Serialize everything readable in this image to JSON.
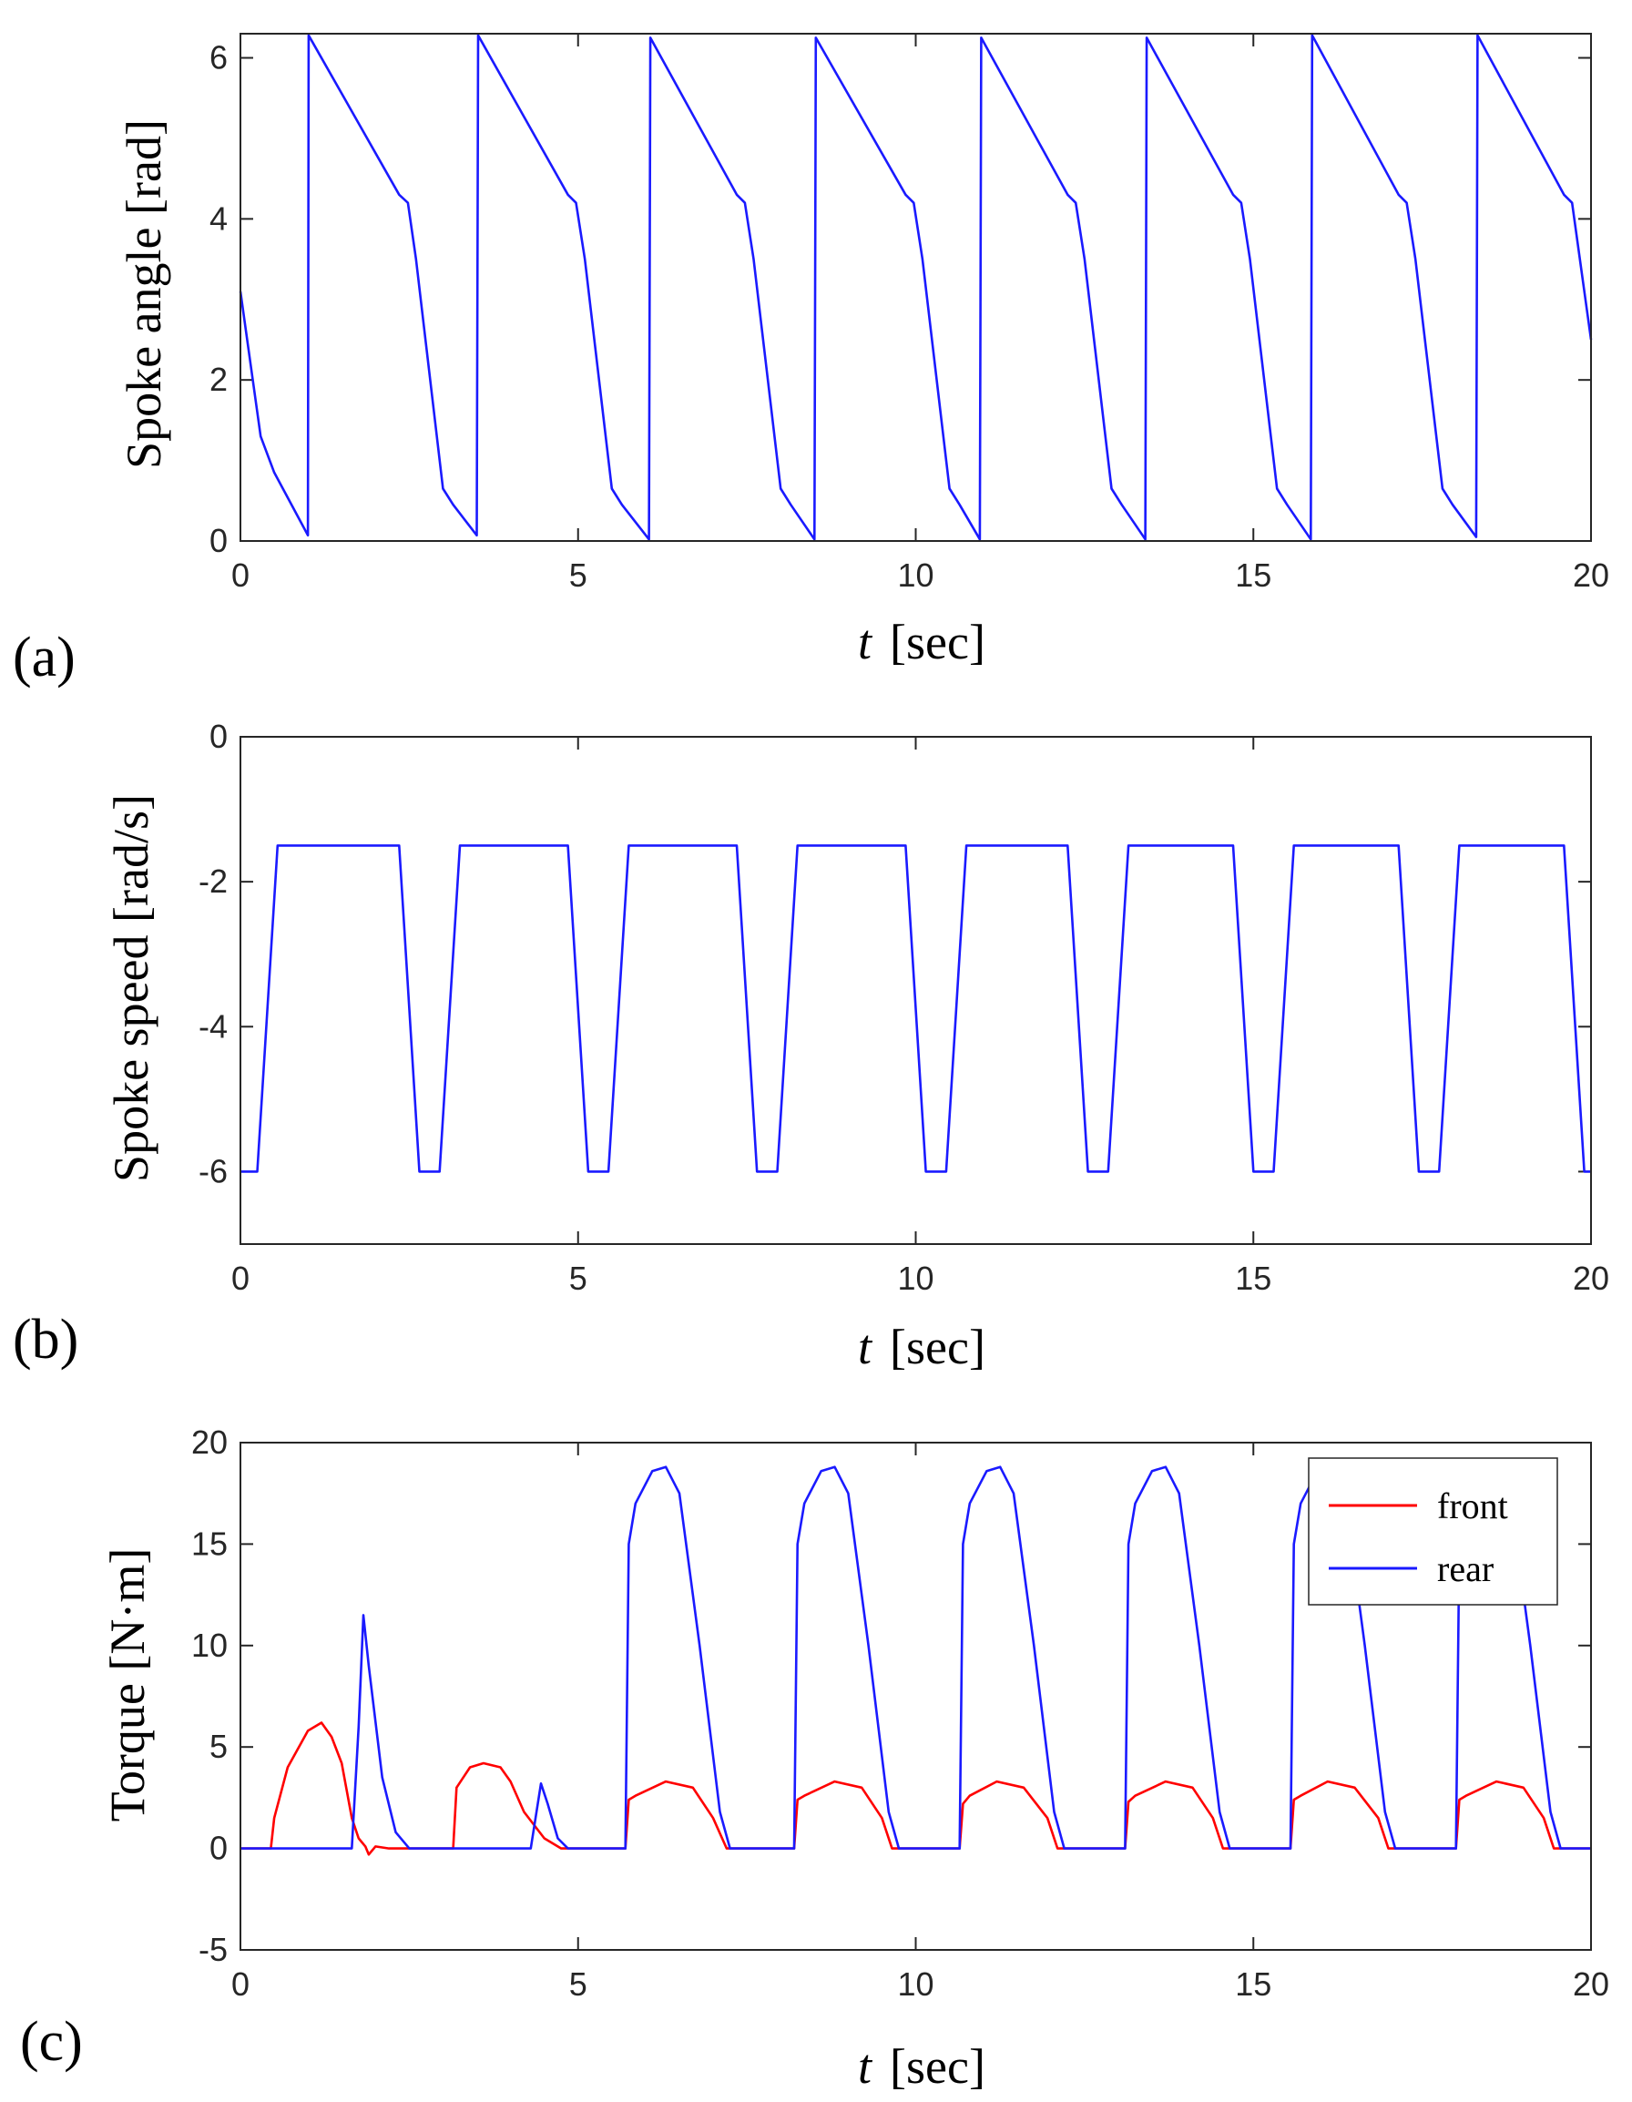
{
  "colors": {
    "front": "#ff0000",
    "rear": "#1a1aff",
    "axis": "#262626"
  },
  "chart_data": [
    {
      "id": "a",
      "type": "line",
      "panel_label": "(a)",
      "title": "",
      "xlabel_italic": "t",
      "xlabel_unit": "[sec]",
      "ylabel": "Spoke angle [rad]",
      "xlim": [
        0,
        20
      ],
      "ylim": [
        0,
        6.3
      ],
      "xticks": [
        0,
        5,
        10,
        15,
        20
      ],
      "yticks": [
        0,
        2,
        4,
        6
      ],
      "series": [
        {
          "name": "spoke angle",
          "color": "rear",
          "x": [
            0,
            0.15,
            0.3,
            0.5,
            1.0,
            1.01,
            2.35,
            2.48,
            2.6,
            3.0,
            3.15,
            3.5,
            3.52,
            4.85,
            4.97,
            5.1,
            5.5,
            5.65,
            6.05,
            6.07,
            7.35,
            7.47,
            7.6,
            8.0,
            8.15,
            8.5,
            8.52,
            9.85,
            9.97,
            10.1,
            10.5,
            10.65,
            10.95,
            10.97,
            12.25,
            12.37,
            12.5,
            12.9,
            13.05,
            13.4,
            13.42,
            14.7,
            14.82,
            14.95,
            15.35,
            15.5,
            15.85,
            15.87,
            17.15,
            17.27,
            17.4,
            17.8,
            17.95,
            18.3,
            18.32,
            19.6,
            19.72,
            20.0
          ],
          "y": [
            3.1,
            2.2,
            1.3,
            0.85,
            0.07,
            6.28,
            4.3,
            4.2,
            3.5,
            0.65,
            0.45,
            0.07,
            6.28,
            4.3,
            4.2,
            3.5,
            0.65,
            0.45,
            0.02,
            6.25,
            4.3,
            4.2,
            3.5,
            0.65,
            0.45,
            0.02,
            6.25,
            4.3,
            4.2,
            3.5,
            0.65,
            0.45,
            0.02,
            6.25,
            4.3,
            4.2,
            3.5,
            0.65,
            0.45,
            0.02,
            6.25,
            4.3,
            4.2,
            3.5,
            0.65,
            0.45,
            0.02,
            6.28,
            4.3,
            4.2,
            3.5,
            0.65,
            0.45,
            0.05,
            6.28,
            4.3,
            4.2,
            2.5
          ]
        }
      ]
    },
    {
      "id": "b",
      "type": "line",
      "panel_label": "(b)",
      "title": "",
      "xlabel_italic": "t",
      "xlabel_unit": "[sec]",
      "ylabel": "Spoke speed [rad/s]",
      "xlim": [
        0,
        20
      ],
      "ylim": [
        -7,
        0
      ],
      "xticks": [
        0,
        5,
        10,
        15,
        20
      ],
      "yticks": [
        0,
        -2,
        -4,
        -6
      ],
      "series": [
        {
          "name": "spoke speed",
          "color": "rear",
          "x": [
            0,
            0.25,
            0.55,
            2.35,
            2.65,
            2.95,
            3.25,
            4.85,
            5.15,
            5.45,
            5.75,
            7.35,
            7.65,
            7.95,
            8.25,
            9.85,
            10.15,
            10.45,
            10.75,
            12.25,
            12.55,
            12.85,
            13.15,
            14.7,
            15.0,
            15.3,
            15.6,
            17.15,
            17.45,
            17.75,
            18.05,
            19.6,
            19.9,
            20.0
          ],
          "y": [
            -6,
            -6,
            -1.5,
            -1.5,
            -6,
            -6,
            -1.5,
            -1.5,
            -6,
            -6,
            -1.5,
            -1.5,
            -6,
            -6,
            -1.5,
            -1.5,
            -6,
            -6,
            -1.5,
            -1.5,
            -6,
            -6,
            -1.5,
            -1.5,
            -6,
            -6,
            -1.5,
            -1.5,
            -6,
            -6,
            -1.5,
            -1.5,
            -6,
            -6
          ]
        }
      ]
    },
    {
      "id": "c",
      "type": "line",
      "panel_label": "(c)",
      "title": "",
      "xlabel_italic": "t",
      "xlabel_unit": "[sec]",
      "ylabel": "Torque [N·m]",
      "xlim": [
        0,
        20
      ],
      "ylim": [
        -5,
        20
      ],
      "xticks": [
        0,
        5,
        10,
        15,
        20
      ],
      "yticks": [
        -5,
        0,
        5,
        10,
        15,
        20
      ],
      "legend": {
        "entries": [
          "front",
          "rear"
        ],
        "location": "top-right"
      },
      "series": [
        {
          "name": "front",
          "color": "front",
          "x": [
            0,
            0.45,
            0.5,
            0.7,
            1.0,
            1.2,
            1.35,
            1.5,
            1.65,
            1.75,
            1.85,
            1.9,
            2.0,
            2.2,
            2.5,
            3.15,
            3.2,
            3.4,
            3.6,
            3.85,
            4.0,
            4.2,
            4.5,
            4.75,
            5.7,
            5.75,
            5.85,
            6.3,
            6.7,
            7.0,
            7.2,
            8.2,
            8.25,
            8.35,
            8.8,
            9.2,
            9.5,
            9.65,
            10.65,
            10.7,
            10.8,
            11.2,
            11.6,
            11.95,
            12.1,
            13.1,
            13.15,
            13.25,
            13.7,
            14.1,
            14.4,
            14.55,
            15.55,
            15.6,
            15.7,
            16.1,
            16.5,
            16.85,
            17.0,
            18.0,
            18.05,
            18.15,
            18.6,
            19.0,
            19.3,
            19.45,
            20.0
          ],
          "y": [
            0,
            0,
            1.5,
            4.0,
            5.8,
            6.2,
            5.5,
            4.2,
            1.5,
            0.5,
            0.1,
            -0.3,
            0.1,
            0,
            0,
            0,
            3.0,
            4.0,
            4.2,
            4.0,
            3.3,
            1.8,
            0.5,
            0,
            0,
            2.4,
            2.6,
            3.3,
            3.0,
            1.5,
            0,
            0,
            2.4,
            2.6,
            3.3,
            3.0,
            1.5,
            0,
            0,
            2.2,
            2.6,
            3.3,
            3.0,
            1.5,
            0,
            0,
            2.3,
            2.6,
            3.3,
            3.0,
            1.5,
            0,
            0,
            2.4,
            2.6,
            3.3,
            3.0,
            1.5,
            0,
            0,
            2.4,
            2.6,
            3.3,
            3.0,
            1.5,
            0,
            0
          ]
        },
        {
          "name": "rear",
          "color": "rear",
          "x": [
            0,
            1.65,
            1.75,
            1.82,
            1.9,
            2.1,
            2.3,
            2.5,
            4.3,
            4.45,
            4.55,
            4.7,
            4.85,
            5.7,
            5.75,
            5.85,
            6.1,
            6.3,
            6.5,
            6.8,
            7.1,
            7.25,
            8.2,
            8.25,
            8.35,
            8.6,
            8.8,
            9.0,
            9.3,
            9.6,
            9.75,
            10.65,
            10.7,
            10.8,
            11.05,
            11.25,
            11.45,
            11.75,
            12.05,
            12.2,
            13.1,
            13.15,
            13.25,
            13.5,
            13.7,
            13.9,
            14.2,
            14.5,
            14.65,
            15.55,
            15.6,
            15.7,
            15.95,
            16.15,
            16.35,
            16.65,
            16.95,
            17.1,
            18.0,
            18.05,
            18.15,
            18.4,
            18.6,
            18.8,
            19.1,
            19.4,
            19.55,
            20.0
          ],
          "y": [
            0,
            0,
            6.0,
            11.5,
            9.0,
            3.5,
            0.8,
            0,
            0,
            3.2,
            2.2,
            0.5,
            0,
            0,
            15.0,
            17.0,
            18.6,
            18.8,
            17.5,
            10.0,
            1.8,
            0,
            0,
            15.0,
            17.0,
            18.6,
            18.8,
            17.5,
            10.0,
            1.8,
            0,
            0,
            15.0,
            17.0,
            18.6,
            18.8,
            17.5,
            10.0,
            1.8,
            0,
            0,
            15.0,
            17.0,
            18.6,
            18.8,
            17.5,
            10.0,
            1.8,
            0,
            0,
            15.0,
            17.0,
            18.6,
            18.8,
            17.5,
            10.0,
            1.8,
            0,
            0,
            15.0,
            17.0,
            18.6,
            18.8,
            17.5,
            10.0,
            1.8,
            0,
            0
          ]
        }
      ]
    }
  ]
}
